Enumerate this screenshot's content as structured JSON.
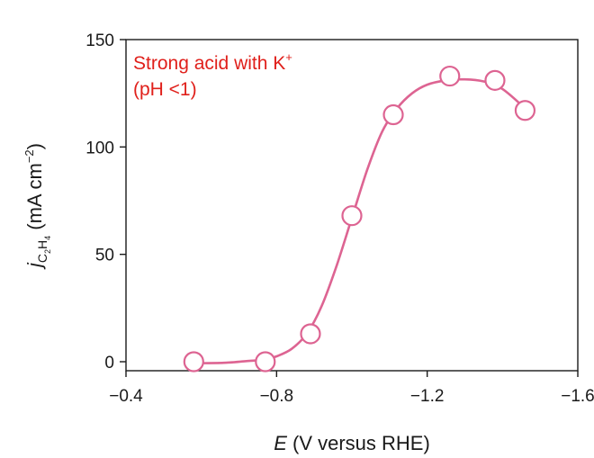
{
  "chart_data": {
    "type": "scatter",
    "xlim": [
      -0.4,
      -1.6
    ],
    "ylim": [
      0,
      150
    ],
    "x_ticks": [
      {
        "value": -0.4,
        "label": "−0.4"
      },
      {
        "value": -0.8,
        "label": "−0.8"
      },
      {
        "value": -1.2,
        "label": "−1.2"
      },
      {
        "value": -1.6,
        "label": "−1.6"
      }
    ],
    "y_ticks": [
      {
        "value": 0,
        "label": "0"
      },
      {
        "value": 50,
        "label": "50"
      },
      {
        "value": 100,
        "label": "100"
      },
      {
        "value": 150,
        "label": "150"
      }
    ],
    "xlabel": {
      "italic": "E",
      "rest": " (V versus RHE)"
    },
    "ylabel": {
      "j": "j",
      "sub1": "C",
      "sub1_n": "2",
      "sub2": "H",
      "sub2_n": "4",
      "unit_open": " (mA cm",
      "unit_exp": "−2",
      "unit_close": ")"
    },
    "annotation_line1": "Strong acid with K",
    "annotation_sup": "+",
    "annotation_line2": "(pH <1)",
    "series": [
      {
        "points": [
          {
            "x": -0.58,
            "y": 0
          },
          {
            "x": -0.77,
            "y": 0
          },
          {
            "x": -0.89,
            "y": 13
          },
          {
            "x": -1.0,
            "y": 68
          },
          {
            "x": -1.11,
            "y": 115
          },
          {
            "x": -1.26,
            "y": 133
          },
          {
            "x": -1.38,
            "y": 131
          },
          {
            "x": -1.46,
            "y": 117
          }
        ],
        "fit_curve": [
          {
            "x": -0.58,
            "y": -0.7
          },
          {
            "x": -0.66,
            "y": -0.5
          },
          {
            "x": -0.72,
            "y": 0.3
          },
          {
            "x": -0.77,
            "y": 1.0
          },
          {
            "x": -0.8,
            "y": 2.5
          },
          {
            "x": -0.84,
            "y": 6
          },
          {
            "x": -0.88,
            "y": 13
          },
          {
            "x": -0.92,
            "y": 26
          },
          {
            "x": -0.96,
            "y": 45
          },
          {
            "x": -1.0,
            "y": 67
          },
          {
            "x": -1.04,
            "y": 89
          },
          {
            "x": -1.08,
            "y": 107
          },
          {
            "x": -1.12,
            "y": 118
          },
          {
            "x": -1.16,
            "y": 125
          },
          {
            "x": -1.2,
            "y": 129
          },
          {
            "x": -1.25,
            "y": 131
          },
          {
            "x": -1.3,
            "y": 131.5
          },
          {
            "x": -1.35,
            "y": 130.5
          },
          {
            "x": -1.4,
            "y": 127
          },
          {
            "x": -1.46,
            "y": 118
          }
        ]
      }
    ]
  },
  "colors": {
    "series": "#dd6492",
    "annotation": "#e0201b",
    "axis": "#1a1a1a"
  }
}
